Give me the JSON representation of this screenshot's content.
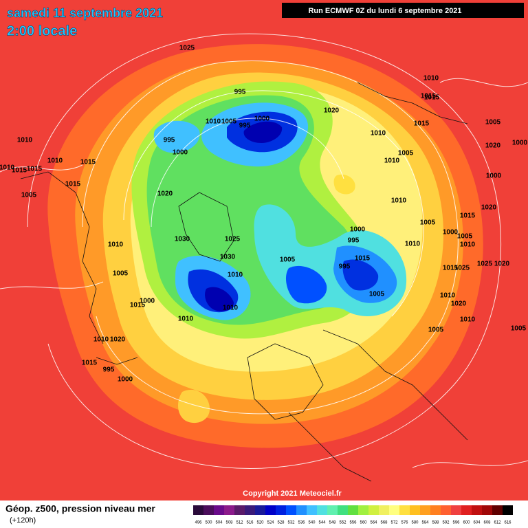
{
  "header": {
    "title": "samedi 11 septembre 2021",
    "subtitle": "2:00 locale",
    "run": "Run ECMWF 0Z du lundi 6 septembre 2021"
  },
  "copyright": "Copyright 2021 Meteociel.fr",
  "legend": {
    "title": "Géop. z500, pression niveau mer",
    "lead": "(+120h)",
    "scale": [
      {
        "value": 496,
        "color": "#2a0a3a"
      },
      {
        "value": 500,
        "color": "#4b0d5b"
      },
      {
        "value": 504,
        "color": "#6a0a8a"
      },
      {
        "value": 508,
        "color": "#8b1a8b"
      },
      {
        "value": 512,
        "color": "#5a1a6a"
      },
      {
        "value": 516,
        "color": "#3a1a7a"
      },
      {
        "value": 520,
        "color": "#1a1a9a"
      },
      {
        "value": 524,
        "color": "#0000c8"
      },
      {
        "value": 528,
        "color": "#0020e0"
      },
      {
        "value": 532,
        "color": "#0050ff"
      },
      {
        "value": 536,
        "color": "#2090ff"
      },
      {
        "value": 540,
        "color": "#40c0ff"
      },
      {
        "value": 544,
        "color": "#50e0e0"
      },
      {
        "value": 548,
        "color": "#60f0b0"
      },
      {
        "value": 552,
        "color": "#40e080"
      },
      {
        "value": 556,
        "color": "#60e040"
      },
      {
        "value": 560,
        "color": "#a0f040"
      },
      {
        "value": 564,
        "color": "#d0f040"
      },
      {
        "value": 568,
        "color": "#f0f060"
      },
      {
        "value": 572,
        "color": "#ffff80"
      },
      {
        "value": 576,
        "color": "#ffe040"
      },
      {
        "value": 580,
        "color": "#ffc020"
      },
      {
        "value": 584,
        "color": "#ffa020"
      },
      {
        "value": 588,
        "color": "#ff8020"
      },
      {
        "value": 592,
        "color": "#ff6030"
      },
      {
        "value": 596,
        "color": "#f04040"
      },
      {
        "value": 600,
        "color": "#e02020"
      },
      {
        "value": 604,
        "color": "#c01010"
      },
      {
        "value": 608,
        "color": "#a00808"
      },
      {
        "value": 612,
        "color": "#600000"
      },
      {
        "value": 616,
        "color": "#000000"
      }
    ]
  },
  "isobar_labels": [
    1025,
    995,
    1000,
    995,
    1010,
    1005,
    1020,
    995,
    1000,
    1010,
    1015,
    1010,
    1015,
    1010,
    1015,
    1015,
    1005,
    1020,
    1030,
    1025,
    1030,
    1010,
    1005,
    1010,
    1000,
    1010,
    1015,
    1010,
    1005,
    1000,
    995,
    995,
    1015,
    1005,
    1010,
    1015,
    1010,
    1015,
    1010,
    1005,
    1005,
    1020,
    1000,
    1015,
    1020,
    1000,
    1010,
    1005,
    1010,
    1000,
    1015,
    1005,
    1010,
    1025,
    1025,
    1020,
    1015,
    1010,
    1020,
    1010,
    1005,
    1005,
    1010,
    1020,
    1015,
    995,
    1000
  ]
}
